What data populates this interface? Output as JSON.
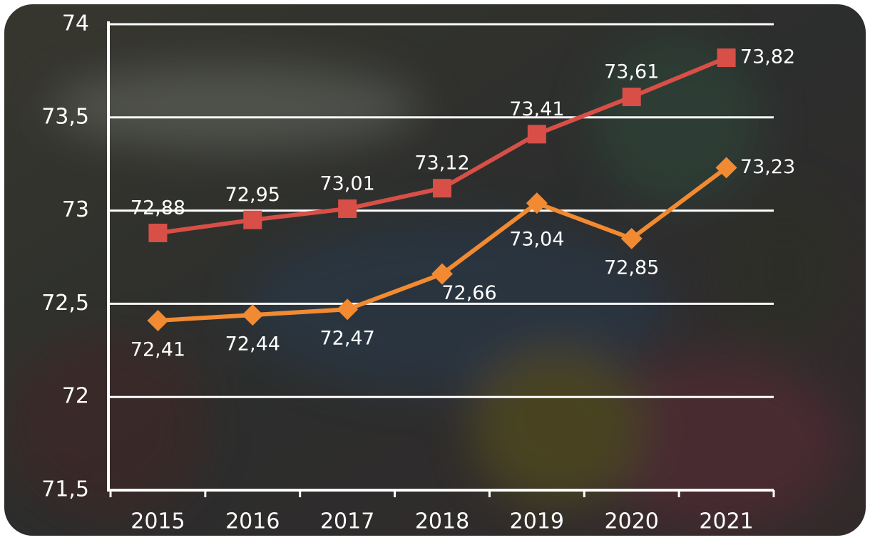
{
  "chart_data": {
    "type": "line",
    "categories": [
      "2015",
      "2016",
      "2017",
      "2018",
      "2019",
      "2020",
      "2021"
    ],
    "series": [
      {
        "color": "#d84f48",
        "marker": "square",
        "values": [
          72.88,
          72.95,
          73.01,
          73.12,
          73.41,
          73.61,
          73.82
        ],
        "value_labels": [
          "72,88",
          "72,95",
          "73,01",
          "73,12",
          "73,41",
          "73,61",
          "73,82"
        ]
      },
      {
        "color": "#f28a32",
        "marker": "diamond",
        "values": [
          72.41,
          72.44,
          72.47,
          72.66,
          73.04,
          72.85,
          73.23
        ],
        "value_labels": [
          "72,41",
          "72,44",
          "72,47",
          "72,66",
          "73,04",
          "72,85",
          "73,23"
        ]
      }
    ],
    "ylim": [
      71.5,
      74
    ],
    "yticks": [
      {
        "value": 71.5,
        "label": "71,5"
      },
      72,
      {
        "value": 72.5,
        "label": "72,5"
      },
      73,
      {
        "value": 73.5,
        "label": "73,5"
      },
      74
    ],
    "grid": true
  }
}
